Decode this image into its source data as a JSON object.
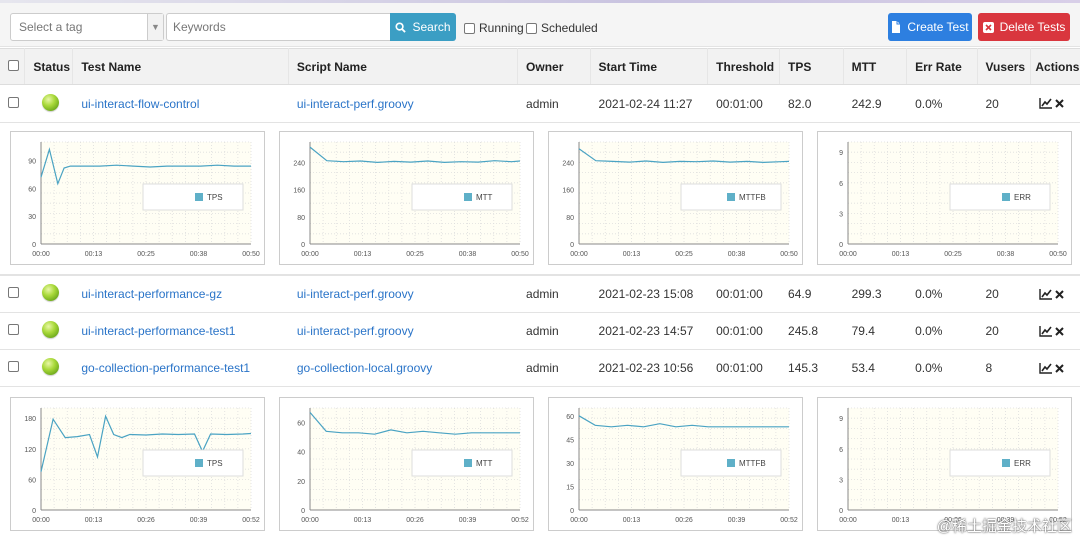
{
  "toolbar": {
    "tag_placeholder": "Select a tag",
    "keywords_placeholder": "Keywords",
    "search_label": "Search",
    "running_label": "Running",
    "scheduled_label": "Scheduled",
    "create_label": "Create Test",
    "delete_label": "Delete Tests"
  },
  "table": {
    "headers": {
      "status": "Status",
      "test_name": "Test Name",
      "script_name": "Script Name",
      "owner": "Owner",
      "start_time": "Start Time",
      "threshold": "Threshold",
      "tps": "TPS",
      "mtt": "MTT",
      "err_rate": "Err Rate",
      "vusers": "Vusers",
      "actions": "Actions"
    },
    "rows": [
      {
        "test_name": "ui-interact-flow-control",
        "script_name": "ui-interact-perf.groovy",
        "owner": "admin",
        "start_time": "2021-02-24 11:27",
        "threshold": "00:01:00",
        "tps": "82.0",
        "mtt": "242.9",
        "err_rate": "0.0%",
        "vusers": "20"
      },
      {
        "test_name": "ui-interact-performance-gz",
        "script_name": "ui-interact-perf.groovy",
        "owner": "admin",
        "start_time": "2021-02-23 15:08",
        "threshold": "00:01:00",
        "tps": "64.9",
        "mtt": "299.3",
        "err_rate": "0.0%",
        "vusers": "20"
      },
      {
        "test_name": "ui-interact-performance-test1",
        "script_name": "ui-interact-perf.groovy",
        "owner": "admin",
        "start_time": "2021-02-23 14:57",
        "threshold": "00:01:00",
        "tps": "245.8",
        "mtt": "79.4",
        "err_rate": "0.0%",
        "vusers": "20"
      },
      {
        "test_name": "go-collection-performance-test1",
        "script_name": "go-collection-local.groovy",
        "owner": "admin",
        "start_time": "2021-02-23 10:56",
        "threshold": "00:01:00",
        "tps": "145.3",
        "mtt": "53.4",
        "err_rate": "0.0%",
        "vusers": "8"
      }
    ]
  },
  "colors": {
    "line": "#4aa3c3",
    "legend_swatch": "#5fb0c8",
    "link": "#2a74c8",
    "status_ok": "#8cc63f"
  },
  "chart_data": [
    {
      "type": "line",
      "series_name": "TPS",
      "x_ticks": [
        "00:00",
        "00:13",
        "00:25",
        "00:38",
        "00:50"
      ],
      "y_ticks": [
        "0",
        "30",
        "60",
        "90"
      ],
      "ylim": [
        0,
        110
      ],
      "x": [
        0,
        2,
        4,
        5.5,
        7,
        10,
        14,
        18,
        22,
        26,
        30,
        34,
        38,
        42,
        46,
        50
      ],
      "values": [
        72,
        102,
        65,
        82,
        84,
        84,
        84,
        85,
        84,
        83,
        84,
        84,
        84,
        85,
        84,
        84
      ]
    },
    {
      "type": "line",
      "series_name": "MTT",
      "x_ticks": [
        "00:00",
        "00:13",
        "00:25",
        "00:38",
        "00:50"
      ],
      "y_ticks": [
        "0",
        "80",
        "160",
        "240"
      ],
      "ylim": [
        0,
        300
      ],
      "x": [
        0,
        4,
        8,
        12,
        16,
        20,
        24,
        28,
        32,
        36,
        40,
        44,
        48,
        50
      ],
      "values": [
        285,
        245,
        242,
        244,
        240,
        243,
        241,
        244,
        240,
        242,
        241,
        245,
        242,
        244
      ]
    },
    {
      "type": "line",
      "series_name": "MTTFB",
      "x_ticks": [
        "00:00",
        "00:13",
        "00:25",
        "00:38",
        "00:50"
      ],
      "y_ticks": [
        "0",
        "80",
        "160",
        "240"
      ],
      "ylim": [
        0,
        300
      ],
      "x": [
        0,
        4,
        8,
        12,
        16,
        20,
        24,
        28,
        32,
        36,
        40,
        44,
        48,
        50
      ],
      "values": [
        280,
        245,
        243,
        241,
        244,
        240,
        243,
        242,
        244,
        241,
        243,
        240,
        242,
        243
      ]
    },
    {
      "type": "line",
      "series_name": "ERR",
      "x_ticks": [
        "00:00",
        "00:13",
        "00:25",
        "00:38",
        "00:50"
      ],
      "y_ticks": [
        "0",
        "3",
        "6",
        "9"
      ],
      "ylim": [
        0,
        10
      ],
      "x": [],
      "values": []
    },
    {
      "type": "line",
      "series_name": "TPS",
      "x_ticks": [
        "00:00",
        "00:13",
        "00:26",
        "00:39",
        "00:52"
      ],
      "y_ticks": [
        "0",
        "60",
        "120",
        "180"
      ],
      "ylim": [
        0,
        200
      ],
      "x": [
        0,
        3,
        6,
        9,
        12,
        14,
        16,
        18,
        20,
        22,
        26,
        30,
        34,
        38,
        40,
        42,
        46,
        50,
        52
      ],
      "values": [
        75,
        178,
        142,
        144,
        148,
        104,
        184,
        148,
        142,
        148,
        147,
        149,
        148,
        149,
        115,
        149,
        148,
        149,
        150
      ]
    },
    {
      "type": "line",
      "series_name": "MTT",
      "x_ticks": [
        "00:00",
        "00:13",
        "00:26",
        "00:39",
        "00:52"
      ],
      "y_ticks": [
        "0",
        "20",
        "40",
        "60"
      ],
      "ylim": [
        0,
        70
      ],
      "x": [
        0,
        4,
        8,
        12,
        16,
        20,
        24,
        28,
        32,
        36,
        40,
        44,
        48,
        52
      ],
      "values": [
        67,
        54,
        53,
        53,
        52,
        55,
        53,
        54,
        53,
        52,
        53,
        53,
        53,
        53
      ]
    },
    {
      "type": "line",
      "series_name": "MTTFB",
      "x_ticks": [
        "00:00",
        "00:13",
        "00:26",
        "00:39",
        "00:52"
      ],
      "y_ticks": [
        "0",
        "15",
        "30",
        "45",
        "60"
      ],
      "ylim": [
        0,
        65
      ],
      "x": [
        0,
        4,
        8,
        12,
        16,
        20,
        24,
        28,
        32,
        36,
        40,
        44,
        48,
        52
      ],
      "values": [
        60,
        54,
        53,
        54,
        53,
        55,
        53,
        54,
        53,
        53,
        53,
        53,
        53,
        53
      ]
    },
    {
      "type": "line",
      "series_name": "ERR",
      "x_ticks": [
        "00:00",
        "00:13",
        "00:26",
        "00:39",
        "00:52"
      ],
      "y_ticks": [
        "0",
        "3",
        "6",
        "9"
      ],
      "ylim": [
        0,
        10
      ],
      "x": [],
      "values": []
    }
  ],
  "watermark": "@稀土掘金技术社区"
}
